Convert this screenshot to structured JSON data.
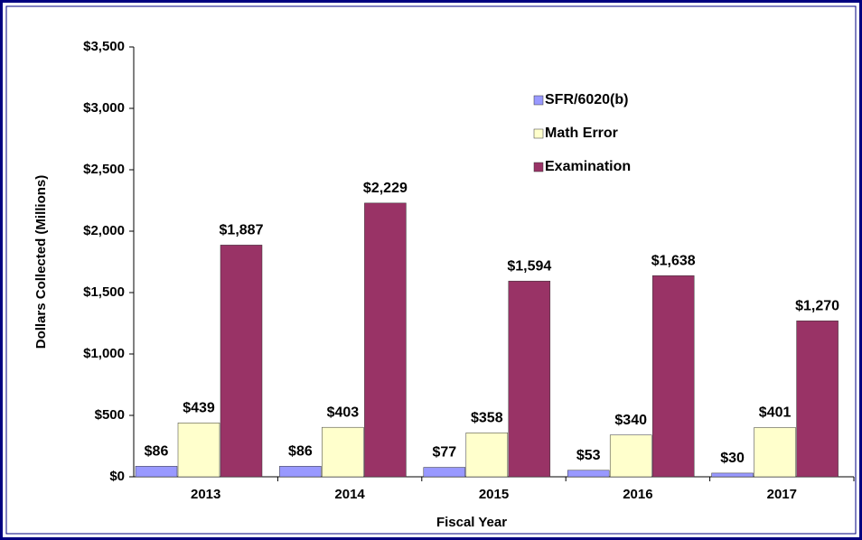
{
  "chart_data": {
    "type": "bar",
    "categories": [
      "2013",
      "2014",
      "2015",
      "2016",
      "2017"
    ],
    "series": [
      {
        "name": "SFR/6020(b)",
        "color": "#9999ff",
        "values": [
          86,
          86,
          77,
          53,
          30
        ],
        "value_labels": [
          "$86",
          "$86",
          "$77",
          "$53",
          "$30"
        ]
      },
      {
        "name": "Math Error",
        "color": "#ffffcc",
        "values": [
          439,
          403,
          358,
          340,
          401
        ],
        "value_labels": [
          "$439",
          "$403",
          "$358",
          "$340",
          "$401"
        ]
      },
      {
        "name": "Examination",
        "color": "#993366",
        "values": [
          1887,
          2229,
          1594,
          1638,
          1270
        ],
        "value_labels": [
          "$1,887",
          "$2,229",
          "$1,594",
          "$1,638",
          "$1,270"
        ]
      }
    ],
    "ylim": [
      0,
      3500
    ],
    "yticks": [
      {
        "value": 0,
        "label": "$0"
      },
      {
        "value": 500,
        "label": "$500"
      },
      {
        "value": 1000,
        "label": "$1,000"
      },
      {
        "value": 1500,
        "label": "$1,500"
      },
      {
        "value": 2000,
        "label": "$2,000"
      },
      {
        "value": 2500,
        "label": "$2,500"
      },
      {
        "value": 3000,
        "label": "$3,000"
      },
      {
        "value": 3500,
        "label": "$3,500"
      }
    ],
    "xlabel": "Fiscal Year",
    "ylabel": "Dollars Collected (Millions)"
  }
}
